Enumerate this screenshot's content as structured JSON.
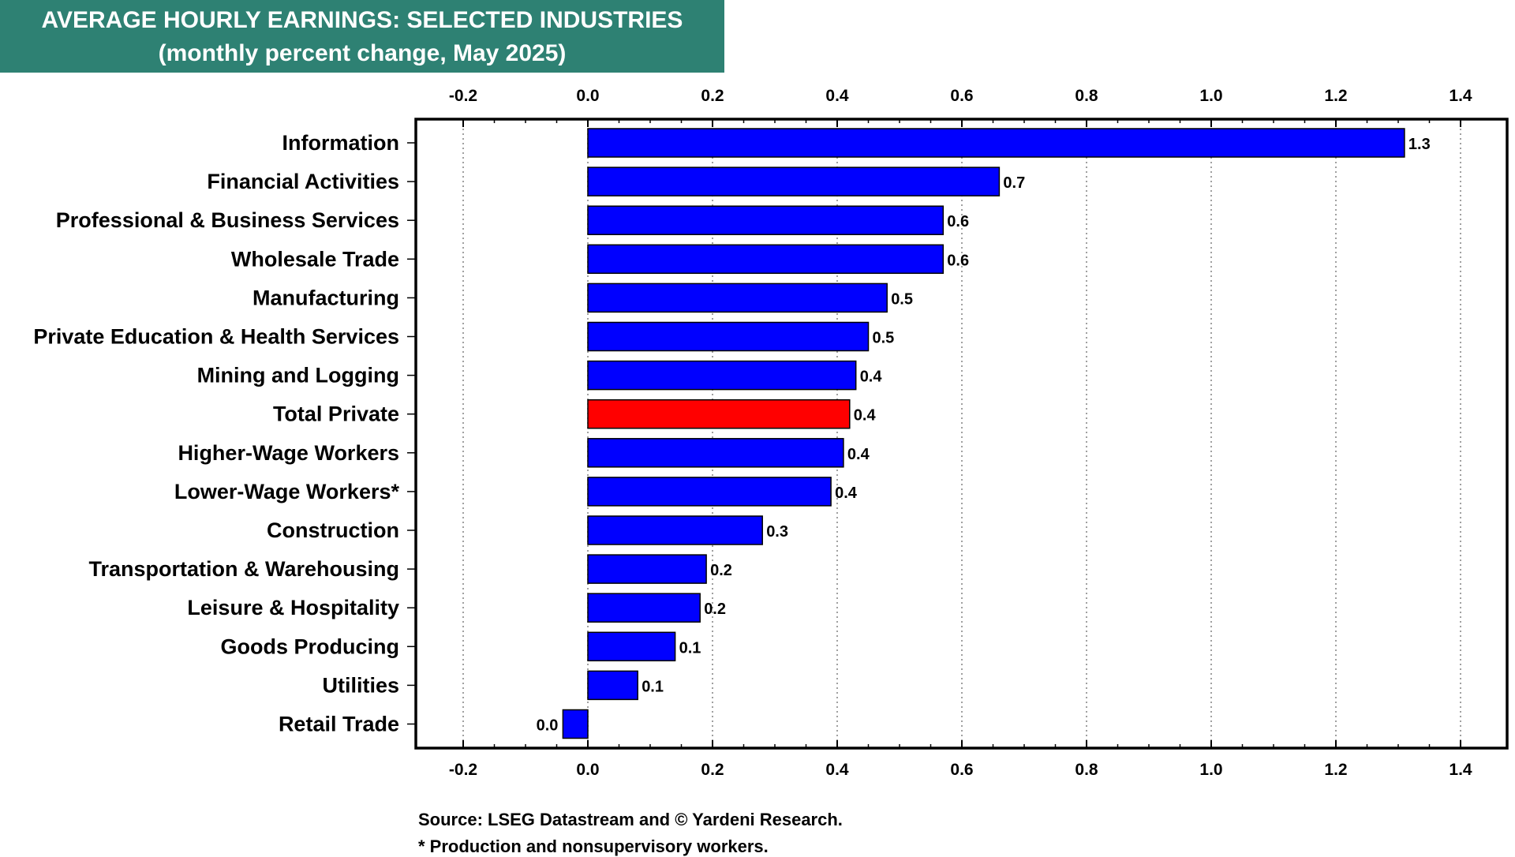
{
  "title": {
    "line1": "AVERAGE HOURLY EARNINGS: SELECTED INDUSTRIES",
    "line2": "(monthly percent change, May 2025)"
  },
  "notes": {
    "source": "Source: LSEG Datastream and © Yardeni Research.",
    "footnote": "* Production and nonsupervisory workers."
  },
  "colors": {
    "title_bg": "#2e8173",
    "bar": "#0000ff",
    "highlight_bar": "#ff0000"
  },
  "chart_data": {
    "type": "bar",
    "orientation": "horizontal",
    "title": "AVERAGE HOURLY EARNINGS: SELECTED INDUSTRIES",
    "subtitle": "(monthly percent change, May 2025)",
    "xlabel": "",
    "ylabel": "",
    "xlim": [
      -0.2,
      1.4
    ],
    "x_ticks": [
      "-0.2",
      "0.0",
      "0.2",
      "0.4",
      "0.6",
      "0.8",
      "1.0",
      "1.2",
      "1.4"
    ],
    "grid": "vertical dotted",
    "categories": [
      "Information",
      "Financial Activities",
      "Professional & Business Services",
      "Wholesale Trade",
      "Manufacturing",
      "Private Education & Health Services",
      "Mining and Logging",
      "Total Private",
      "Higher-Wage Workers",
      "Lower-Wage Workers*",
      "Construction",
      "Transportation & Warehousing",
      "Leisure & Hospitality",
      "Goods Producing",
      "Utilities",
      "Retail Trade"
    ],
    "values": [
      1.31,
      0.66,
      0.57,
      0.57,
      0.48,
      0.45,
      0.43,
      0.42,
      0.41,
      0.39,
      0.28,
      0.19,
      0.18,
      0.14,
      0.08,
      -0.04
    ],
    "labels": [
      "1.3",
      "0.7",
      "0.6",
      "0.6",
      "0.5",
      "0.5",
      "0.4",
      "0.4",
      "0.4",
      "0.4",
      "0.3",
      "0.2",
      "0.2",
      "0.1",
      "0.1",
      "0.0"
    ],
    "highlight": "Total Private"
  }
}
